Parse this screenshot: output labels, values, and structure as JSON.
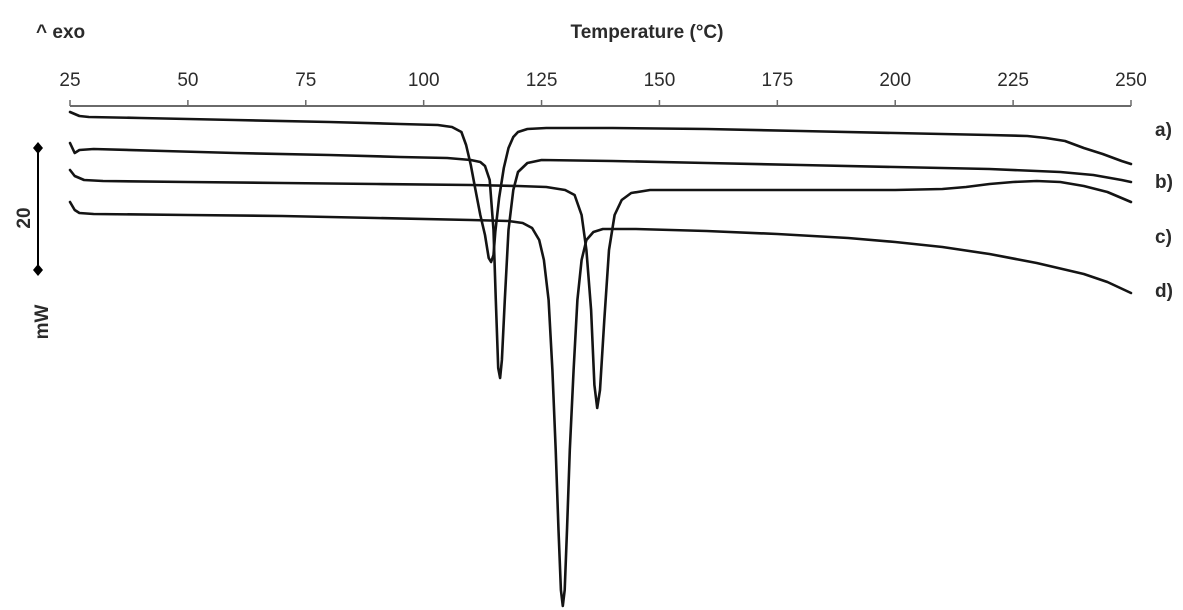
{
  "chart_data": {
    "type": "line",
    "xlabel": "Temperature (°C)",
    "corner_label": "^ exo",
    "xlim": [
      25,
      250
    ],
    "xticks": [
      25,
      50,
      75,
      100,
      125,
      150,
      175,
      200,
      225,
      250
    ],
    "scale_bar": {
      "value": "20",
      "unit": "mW"
    },
    "grid": false,
    "series": [
      {
        "name": "a)",
        "points": [
          [
            25,
            112
          ],
          [
            27,
            116
          ],
          [
            29,
            117
          ],
          [
            40,
            118
          ],
          [
            60,
            120
          ],
          [
            80,
            122
          ],
          [
            95,
            124
          ],
          [
            103,
            125
          ],
          [
            106,
            127
          ],
          [
            108,
            132
          ],
          [
            109,
            145
          ],
          [
            110,
            165
          ],
          [
            111,
            190
          ],
          [
            112,
            215
          ],
          [
            113,
            235
          ],
          [
            113.8,
            258
          ],
          [
            114.3,
            262
          ],
          [
            114.8,
            255
          ],
          [
            115.2,
            232
          ],
          [
            116,
            198
          ],
          [
            117,
            168
          ],
          [
            118,
            148
          ],
          [
            119,
            137
          ],
          [
            120,
            132
          ],
          [
            122,
            129
          ],
          [
            126,
            128
          ],
          [
            140,
            128
          ],
          [
            160,
            129
          ],
          [
            180,
            131
          ],
          [
            200,
            133
          ],
          [
            220,
            135
          ],
          [
            228,
            136
          ],
          [
            232,
            138
          ],
          [
            236,
            141
          ],
          [
            240,
            148
          ],
          [
            244,
            154
          ],
          [
            248,
            161
          ],
          [
            250,
            164
          ]
        ]
      },
      {
        "name": "b)",
        "points": [
          [
            25,
            143
          ],
          [
            26,
            153
          ],
          [
            27,
            150
          ],
          [
            30,
            149
          ],
          [
            45,
            151
          ],
          [
            60,
            153
          ],
          [
            80,
            155
          ],
          [
            95,
            157
          ],
          [
            105,
            158
          ],
          [
            110,
            160
          ],
          [
            112,
            162
          ],
          [
            113,
            166
          ],
          [
            114,
            180
          ],
          [
            114.8,
            230
          ],
          [
            115.3,
            300
          ],
          [
            115.8,
            368
          ],
          [
            116.2,
            378
          ],
          [
            116.6,
            360
          ],
          [
            117.2,
            300
          ],
          [
            118,
            230
          ],
          [
            119,
            190
          ],
          [
            120,
            172
          ],
          [
            122,
            163
          ],
          [
            125,
            160
          ],
          [
            140,
            161
          ],
          [
            160,
            163
          ],
          [
            180,
            165
          ],
          [
            200,
            167
          ],
          [
            220,
            169
          ],
          [
            235,
            172
          ],
          [
            242,
            175
          ],
          [
            248,
            180
          ],
          [
            250,
            182
          ]
        ]
      },
      {
        "name": "c)",
        "points": [
          [
            25,
            170
          ],
          [
            26,
            176
          ],
          [
            28,
            180
          ],
          [
            32,
            181
          ],
          [
            50,
            182
          ],
          [
            70,
            183
          ],
          [
            90,
            184
          ],
          [
            110,
            185
          ],
          [
            120,
            186
          ],
          [
            126,
            187
          ],
          [
            130,
            190
          ],
          [
            132,
            195
          ],
          [
            133.5,
            215
          ],
          [
            134.5,
            250
          ],
          [
            135.5,
            310
          ],
          [
            136.2,
            385
          ],
          [
            136.8,
            408
          ],
          [
            137.4,
            390
          ],
          [
            138.3,
            320
          ],
          [
            139.3,
            250
          ],
          [
            140.5,
            215
          ],
          [
            142,
            200
          ],
          [
            144,
            193
          ],
          [
            148,
            190
          ],
          [
            160,
            190
          ],
          [
            180,
            190
          ],
          [
            200,
            190
          ],
          [
            210,
            189
          ],
          [
            215,
            187
          ],
          [
            220,
            184
          ],
          [
            225,
            182
          ],
          [
            230,
            181
          ],
          [
            235,
            182
          ],
          [
            240,
            186
          ],
          [
            245,
            192
          ],
          [
            250,
            202
          ]
        ]
      },
      {
        "name": "d)",
        "points": [
          [
            25,
            202
          ],
          [
            26,
            210
          ],
          [
            27,
            213
          ],
          [
            30,
            214
          ],
          [
            50,
            215
          ],
          [
            70,
            216
          ],
          [
            90,
            218
          ],
          [
            110,
            220
          ],
          [
            118,
            221
          ],
          [
            121,
            223
          ],
          [
            123,
            228
          ],
          [
            124.5,
            240
          ],
          [
            125.5,
            260
          ],
          [
            126.5,
            300
          ],
          [
            127.3,
            370
          ],
          [
            128,
            450
          ],
          [
            128.6,
            530
          ],
          [
            129.1,
            590
          ],
          [
            129.5,
            606
          ],
          [
            129.9,
            590
          ],
          [
            130.4,
            530
          ],
          [
            131,
            450
          ],
          [
            131.8,
            370
          ],
          [
            132.6,
            300
          ],
          [
            133.5,
            260
          ],
          [
            134.5,
            240
          ],
          [
            136,
            232
          ],
          [
            138,
            229
          ],
          [
            145,
            229
          ],
          [
            160,
            231
          ],
          [
            175,
            234
          ],
          [
            190,
            238
          ],
          [
            200,
            242
          ],
          [
            210,
            247
          ],
          [
            220,
            254
          ],
          [
            230,
            263
          ],
          [
            240,
            274
          ],
          [
            245,
            282
          ],
          [
            250,
            293
          ]
        ]
      }
    ]
  }
}
